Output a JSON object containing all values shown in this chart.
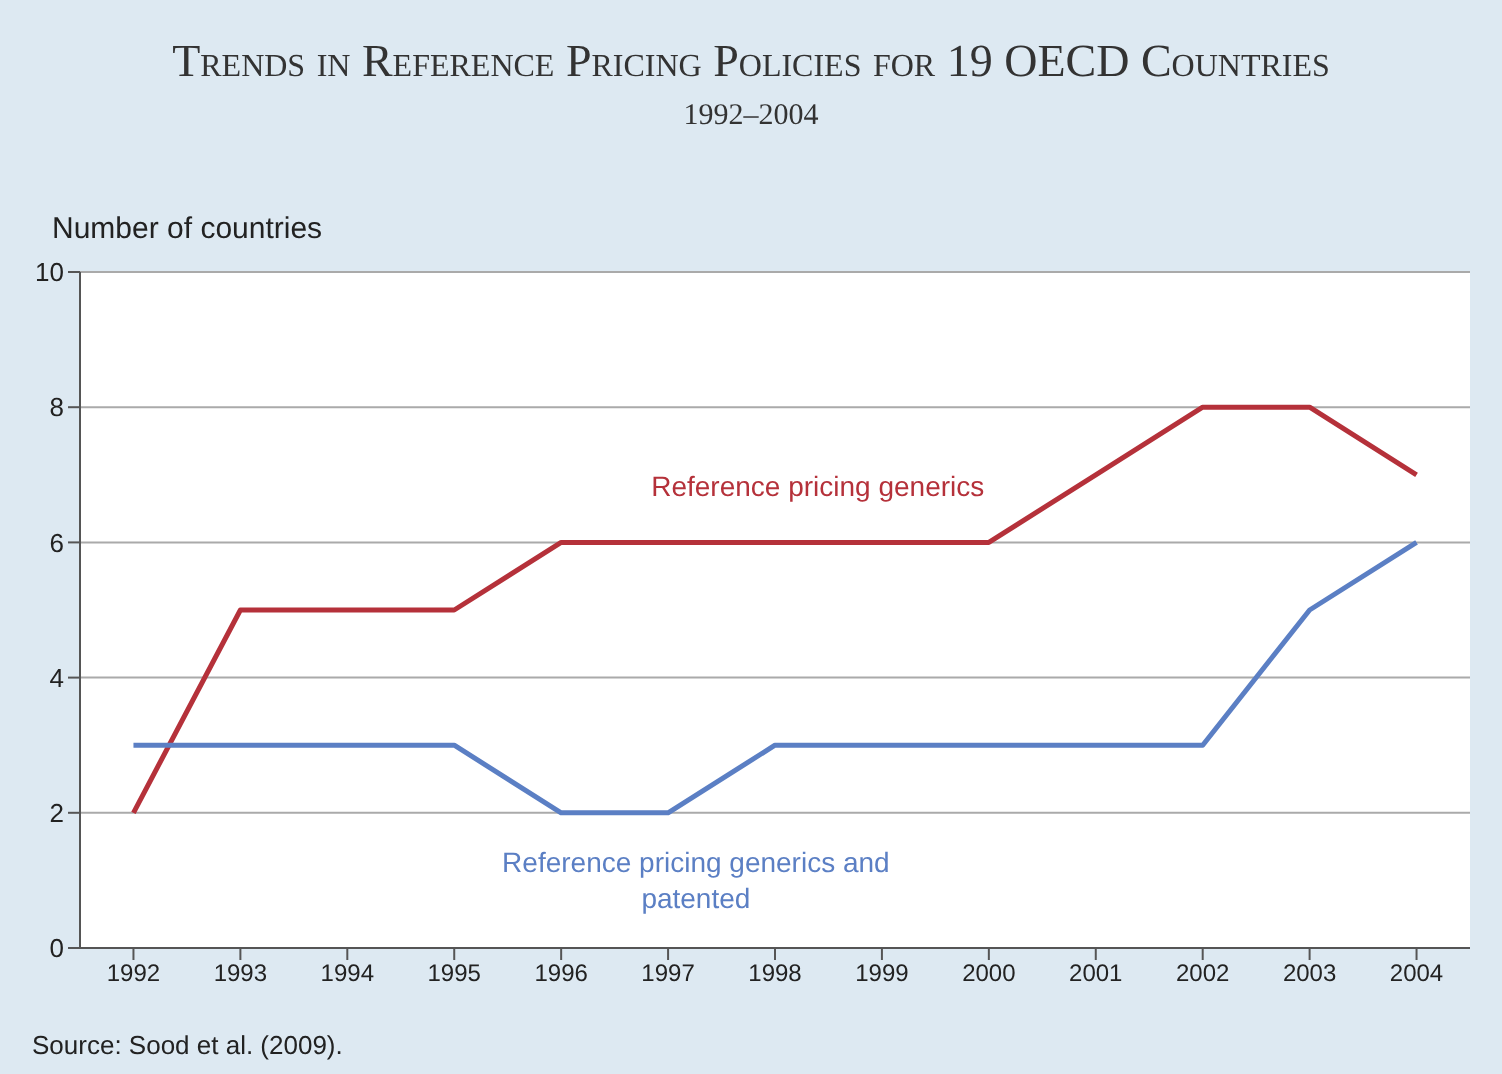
{
  "chart_data": {
    "type": "line",
    "title": "Trends in  Reference Pricing Policies  for 19 OECD Countries",
    "subtitle": "1992–2004",
    "ylabel": "Number of countries",
    "annotations": [
      "Source: Sood et al. (2009)."
    ],
    "categories": [
      "1992",
      "1993",
      "1994",
      "1995",
      "1996",
      "1997",
      "1998",
      "1999",
      "2000",
      "2001",
      "2002",
      "2003",
      "2004"
    ],
    "series": [
      {
        "name": "Reference pricing generics",
        "color": "#b5313a",
        "values": [
          2,
          5,
          5,
          5,
          6,
          6,
          6,
          6,
          6,
          7,
          8,
          8,
          7
        ]
      },
      {
        "name": "Reference pricing generics and patented",
        "color": "#5b7fc4",
        "values": [
          3,
          3,
          3,
          3,
          2,
          2,
          3,
          3,
          3,
          3,
          3,
          5,
          6
        ]
      }
    ],
    "ylim": [
      0,
      10
    ],
    "yticks": [
      0,
      2,
      4,
      6,
      8,
      10
    ],
    "grid": "y",
    "marker": "none",
    "line_style": "solid"
  }
}
